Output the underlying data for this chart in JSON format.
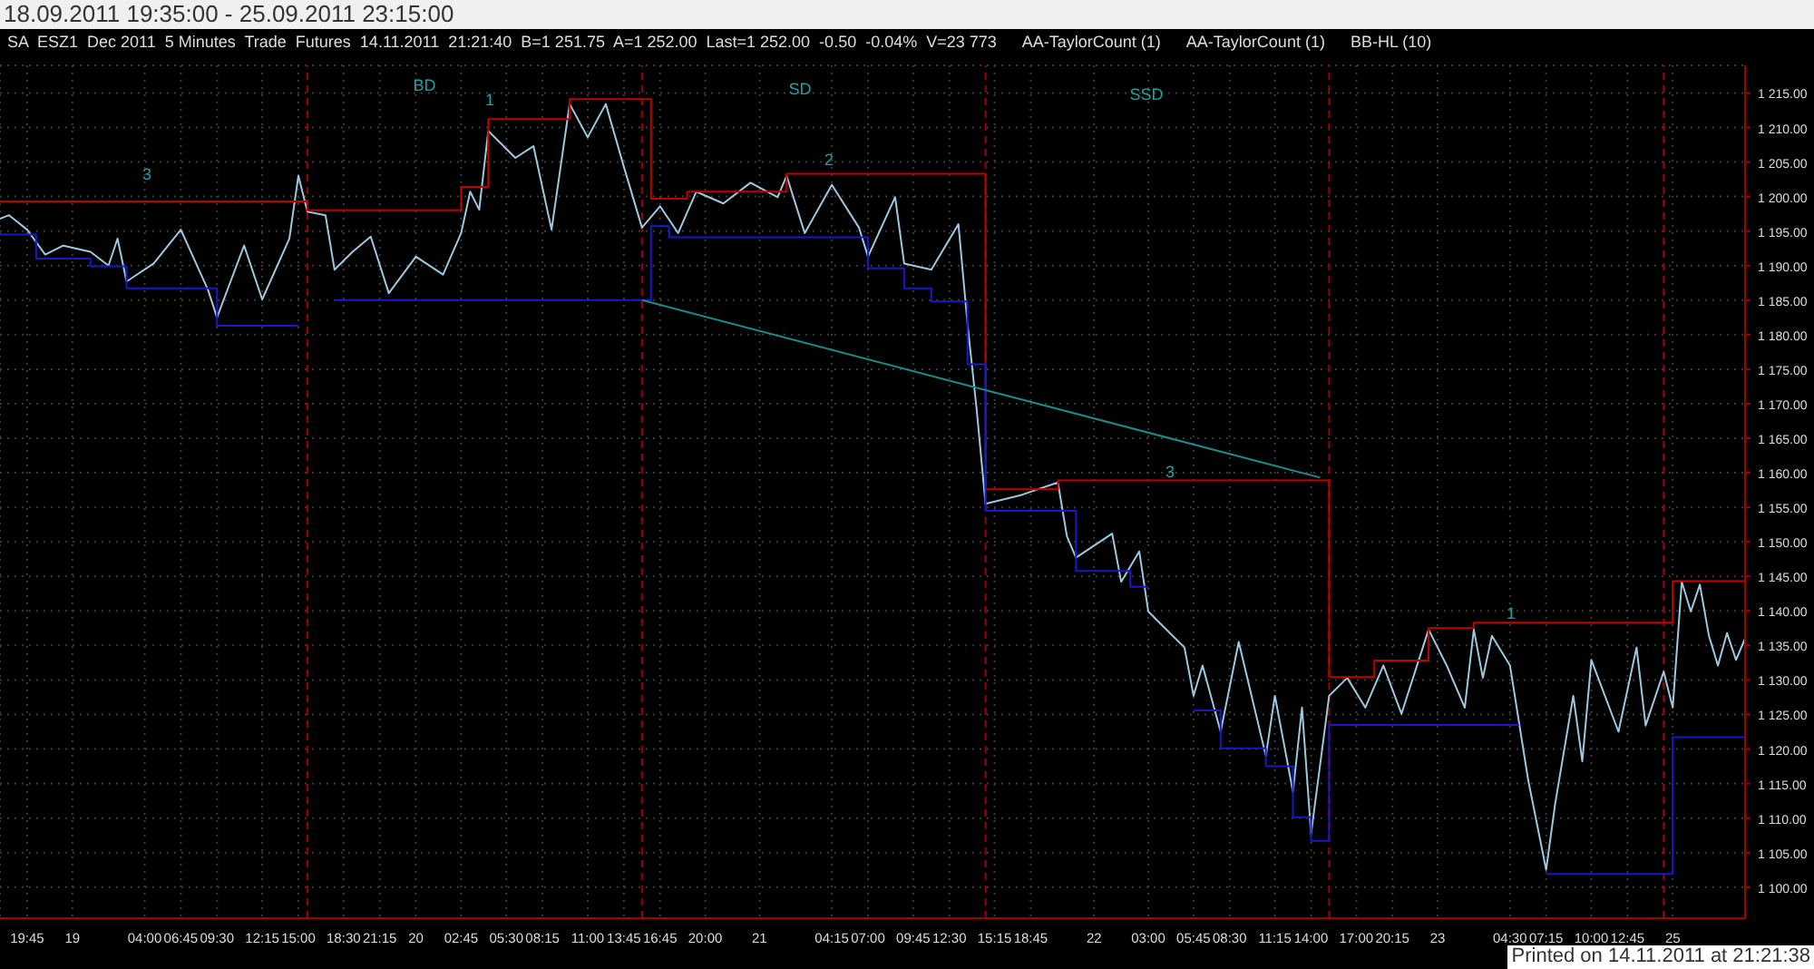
{
  "chart_data": {
    "type": "line",
    "title": "18.09.2011 19:35:00 - 25.09.2011 23:15:00",
    "subtitle": "SA  ESZ1  Dec 2011  5 Minutes  Trade  Futures  14.11.2011  21:21:40  B=1 251.75  A=1 252.00  Last=1 252.00  -0.50  -0.04%  V=23 773",
    "categories": [
      null,
      null,
      null,
      "19:45",
      null,
      null,
      null,
      null,
      "19",
      null,
      null,
      null,
      null,
      null,
      null,
      null,
      "04:00",
      null,
      null,
      null,
      "06:45",
      null,
      null,
      null,
      "09:30",
      null,
      null,
      null,
      null,
      "12:15",
      null,
      null,
      null,
      "15:00",
      null,
      null,
      null,
      null,
      "18:30",
      null,
      null,
      null,
      "21:15",
      null,
      null,
      null,
      "20",
      null,
      null,
      null,
      null,
      "02:45",
      null,
      null,
      null,
      null,
      "05:30",
      null,
      null,
      null,
      "08:15",
      null,
      null,
      null,
      null,
      "11:00",
      null,
      null,
      null,
      "13:45",
      null,
      null,
      null,
      "16:45",
      null,
      null,
      null,
      null,
      "20:00",
      null,
      null,
      null,
      null,
      null,
      "21",
      null,
      null,
      null,
      null,
      null,
      null,
      null,
      "04:15",
      null,
      null,
      null,
      "07:00",
      null,
      null,
      null,
      null,
      "09:45",
      null,
      null,
      null,
      "12:30",
      null,
      null,
      null,
      null,
      "15:15",
      null,
      null,
      null,
      "18:45",
      null,
      null,
      null,
      null,
      null,
      null,
      "22",
      null,
      null,
      null,
      null,
      null,
      "03:00",
      null,
      null,
      null,
      null,
      "05:45",
      null,
      null,
      null,
      "08:30",
      null,
      null,
      null,
      null,
      "11:15",
      null,
      null,
      null,
      "14:00",
      null,
      null,
      null,
      null,
      "17:00",
      null,
      null,
      null,
      "20:15",
      null,
      null,
      null,
      null,
      "23",
      null,
      null,
      null,
      null,
      null,
      null,
      null,
      "04:30",
      null,
      null,
      null,
      "07:15",
      null,
      null,
      null,
      null,
      "10:00",
      null,
      null,
      null,
      "12:45",
      null,
      null,
      null,
      null,
      "25",
      null,
      null,
      null,
      null,
      null,
      null,
      null,
      null
    ],
    "series": [
      {
        "color": "#9cc8e0",
        "values": [
          1196.8,
          1197.3,
          null,
          1195.2,
          null,
          1191.6,
          null,
          1192.9,
          null,
          null,
          1192,
          null,
          1190,
          1193.9,
          1187.7,
          null,
          null,
          1190.3,
          null,
          null,
          1195.2,
          null,
          null,
          1186.5,
          1182.5,
          null,
          null,
          1192.9,
          null,
          1185.1,
          null,
          null,
          1193.9,
          1203.0,
          1197.8,
          null,
          1197.3,
          1189.4,
          null,
          1192,
          null,
          1194.2,
          null,
          1186.0,
          null,
          null,
          1191.3,
          null,
          null,
          1188.7,
          null,
          1194.7,
          1200.7,
          1198.1,
          1209.5,
          null,
          null,
          1205.6,
          null,
          1207.3,
          null,
          1195.2,
          null,
          1213.4,
          null,
          1208.6,
          null,
          1213.4,
          null,
          1204.3,
          null,
          1195.5,
          null,
          1198.6,
          null,
          1194.7,
          null,
          1200.7,
          null,
          null,
          1199.0,
          null,
          null,
          1202.0,
          null,
          null,
          1199.9,
          1203.0,
          null,
          1194.7,
          null,
          null,
          1201.7,
          null,
          null,
          1195.5,
          1191.3,
          null,
          null,
          1199.9,
          1190.3,
          null,
          null,
          1189.4,
          null,
          null,
          1196.0,
          1181.6,
          1169.4,
          1155.5,
          null,
          null,
          null,
          1156.8,
          null,
          null,
          null,
          1158.6,
          1150.8,
          1147.7,
          null,
          null,
          null,
          1151.2,
          1144.2,
          null,
          1148.6,
          1139.9,
          null,
          null,
          null,
          1134.7,
          1127.7,
          1132.1,
          null,
          1122.5,
          null,
          1135.5,
          null,
          null,
          1119.0,
          1127.7,
          null,
          1113.8,
          1126.0,
          1107.7,
          null,
          1127.7,
          null,
          1130.3,
          null,
          1126.0,
          null,
          1132.1,
          null,
          1125.1,
          null,
          null,
          1137.3,
          null,
          1132.1,
          null,
          1126.0,
          1137.3,
          1130.3,
          1136.4,
          null,
          1132.1,
          null,
          1115.6,
          null,
          1102.5,
          1112.1,
          null,
          1127.7,
          1118.2,
          1132.9,
          null,
          null,
          1122.5,
          null,
          1134.7,
          1123.4,
          null,
          1131.2,
          1126.0,
          1144.2,
          1139.9,
          1143.8,
          1136.4,
          1132.1,
          1136.8,
          1132.9,
          1136.0
        ]
      },
      {
        "type": "step",
        "color": "#c00000",
        "values": [
          1199.3,
          1199.3,
          1199.3,
          1199.3,
          1199.3,
          1199.3,
          1199.3,
          1199.3,
          1199.3,
          1199.3,
          1199.3,
          1199.3,
          1199.3,
          1199.3,
          1199.3,
          1199.3,
          1199.3,
          1199.3,
          1199.3,
          1199.3,
          1199.3,
          1199.3,
          1199.3,
          1199.3,
          1199.3,
          1199.3,
          1199.3,
          1199.3,
          1199.3,
          1199.3,
          1199.3,
          1199.3,
          1199.3,
          1199.3,
          1198.0,
          1198.0,
          1198.0,
          1198.0,
          1198.0,
          1198.0,
          1198.0,
          1198.0,
          1198.0,
          1198.0,
          1198.0,
          1198.0,
          1198.0,
          1198.0,
          1198.0,
          1198.0,
          1198.0,
          1201.4,
          1201.4,
          1201.4,
          1211.2,
          1211.2,
          1211.2,
          1211.2,
          1211.2,
          1211.2,
          1211.2,
          1211.2,
          1211.2,
          1214.1,
          1214.1,
          1214.1,
          1214.1,
          1214.1,
          1214.1,
          1214.1,
          1214.1,
          1214.1,
          1199.7,
          1199.7,
          1199.7,
          1199.7,
          1200.7,
          1200.7,
          1200.7,
          1200.7,
          1200.7,
          1200.7,
          1200.7,
          1200.7,
          1200.7,
          1200.7,
          1200.7,
          1203.3,
          1203.3,
          1203.3,
          1203.3,
          1203.3,
          1203.3,
          1203.3,
          1203.3,
          1203.3,
          1203.3,
          1203.3,
          1203.3,
          1203.3,
          1203.3,
          1203.3,
          1203.3,
          1203.3,
          1203.3,
          1203.3,
          1203.3,
          1203.3,
          1203.3,
          1157.6,
          1157.6,
          1157.6,
          1157.6,
          1157.6,
          1157.6,
          1157.6,
          1157.6,
          1158.9,
          1158.9,
          1158.9,
          1158.9,
          1158.9,
          1158.9,
          1158.9,
          1158.9,
          1158.9,
          1158.9,
          1158.9,
          1158.9,
          1158.9,
          1158.9,
          1158.9,
          1158.9,
          1158.9,
          1158.9,
          1158.9,
          1158.9,
          1158.9,
          1158.9,
          1158.9,
          1158.9,
          1158.9,
          1158.9,
          1158.9,
          1158.9,
          1158.9,
          1158.9,
          1130.4,
          1130.4,
          1130.4,
          1130.4,
          1130.4,
          1132.8,
          1132.8,
          1132.8,
          1132.8,
          1132.8,
          1132.8,
          1137.5,
          1137.5,
          1137.5,
          1137.5,
          1137.5,
          1138.3,
          1138.3,
          1138.3,
          1138.3,
          1138.3,
          1138.3,
          1138.3,
          1138.3,
          1138.3,
          1138.3,
          1138.3,
          1138.3,
          1138.3,
          1138.3,
          1138.3,
          1138.3,
          1138.3,
          1138.3,
          1138.3,
          1138.3,
          1138.3,
          1138.3,
          1144.3,
          1144.3,
          1144.3,
          1144.3,
          1144.3,
          1144.3,
          1144.3,
          1144.3,
          1144.3
        ]
      },
      {
        "type": "step",
        "color": "#1818c8",
        "values": [
          1194.5,
          1194.5,
          1194.5,
          1194.5,
          1191.0,
          1191.0,
          1191.0,
          1191.0,
          1191.0,
          1191.0,
          1189.9,
          1189.9,
          1189.9,
          1189.9,
          1186.7,
          1186.7,
          1186.7,
          1186.7,
          1186.7,
          1186.7,
          1186.7,
          1186.7,
          1186.7,
          1186.7,
          1181.3,
          1181.3,
          1181.3,
          1181.3,
          1181.3,
          1181.3,
          1181.3,
          1181.3,
          1181.3,
          1181.3,
          null,
          null,
          null,
          1185.0,
          1185.0,
          1185.0,
          1185.0,
          1185.0,
          1185.0,
          1185.0,
          1185.0,
          1185.0,
          1185.0,
          1185.0,
          1185.0,
          1185.0,
          1185.0,
          1185.0,
          1185.0,
          1185.0,
          1185.0,
          1185.0,
          1185.0,
          1185.0,
          1185.0,
          1185.0,
          1185.0,
          1185.0,
          1185.0,
          1185.0,
          1185.0,
          1185.0,
          1185.0,
          1185.0,
          1185.0,
          1185.0,
          1185.0,
          1185.0,
          1195.7,
          1195.7,
          1194.1,
          1194.1,
          1194.1,
          1194.1,
          1194.1,
          1194.1,
          1194.1,
          1194.1,
          1194.1,
          1194.1,
          1194.1,
          1194.1,
          1194.1,
          1194.1,
          1194.1,
          1194.1,
          1194.1,
          1194.1,
          1194.1,
          1194.1,
          1194.1,
          1194.1,
          1189.6,
          1189.6,
          1189.6,
          1189.6,
          1186.7,
          1186.7,
          1186.7,
          1184.8,
          1184.8,
          1184.8,
          1184.8,
          1175.7,
          1175.7,
          1154.5,
          1154.5,
          1154.5,
          1154.5,
          1154.5,
          1154.5,
          1154.5,
          1154.5,
          1154.5,
          1154.5,
          1145.8,
          1145.8,
          1145.8,
          1145.8,
          1145.8,
          1145.8,
          1143.5,
          1143.5,
          1143.5,
          null,
          null,
          null,
          null,
          1125.6,
          1125.6,
          1125.6,
          1120.1,
          1120.1,
          1120.1,
          1120.1,
          1120.1,
          1117.5,
          1117.5,
          1117.5,
          1110.1,
          1110.1,
          1106.7,
          1106.7,
          1123.5,
          1123.5,
          1123.5,
          1123.5,
          1123.5,
          1123.5,
          1123.5,
          1123.5,
          1123.5,
          1123.5,
          1123.5,
          1123.5,
          1123.5,
          1123.5,
          1123.5,
          1123.5,
          1123.5,
          1123.5,
          1123.5,
          1123.5,
          1123.5,
          1123.5,
          null,
          null,
          1101.9,
          1101.9,
          1101.9,
          1101.9,
          1101.9,
          1101.9,
          1101.9,
          1101.9,
          1101.9,
          1101.9,
          1101.9,
          1101.9,
          1101.9,
          1101.9,
          1121.7,
          1121.7,
          1121.7,
          1121.7,
          1121.7,
          1121.7,
          1121.7,
          1121.7,
          1121.7
        ]
      },
      {
        "color": "#1a8c8c",
        "values": [
          null,
          null,
          null,
          null,
          null,
          null,
          null,
          null,
          null,
          null,
          null,
          null,
          null,
          null,
          null,
          null,
          null,
          null,
          null,
          null,
          null,
          null,
          null,
          null,
          null,
          null,
          null,
          null,
          null,
          null,
          null,
          null,
          null,
          null,
          null,
          null,
          null,
          null,
          null,
          null,
          null,
          null,
          null,
          null,
          null,
          null,
          null,
          null,
          null,
          null,
          null,
          null,
          null,
          null,
          null,
          null,
          null,
          null,
          null,
          null,
          null,
          null,
          null,
          null,
          null,
          null,
          null,
          null,
          null,
          null,
          null,
          1185.0,
          null,
          null,
          null,
          null,
          null,
          null,
          null,
          null,
          null,
          null,
          null,
          null,
          null,
          null,
          null,
          null,
          null,
          null,
          null,
          null,
          null,
          null,
          null,
          null,
          null,
          null,
          null,
          null,
          null,
          null,
          null,
          null,
          null,
          null,
          null,
          null,
          null,
          null,
          null,
          null,
          null,
          null,
          null,
          null,
          null,
          null,
          null,
          null,
          null,
          null,
          null,
          null,
          null,
          null,
          null,
          null,
          null,
          null,
          null,
          null,
          null,
          null,
          null,
          null,
          null,
          null,
          null,
          null,
          null,
          null,
          null,
          null,
          null,
          null,
          1159.3,
          null,
          null,
          null,
          null,
          null,
          null,
          null,
          null,
          null,
          null,
          null,
          null,
          null,
          null,
          null,
          null,
          null,
          null,
          null,
          null,
          null,
          null,
          null,
          null,
          null,
          null,
          null,
          null,
          null,
          null,
          null,
          null,
          null,
          null,
          null,
          null,
          null,
          null,
          null,
          null,
          null,
          null,
          null,
          null,
          null,
          null,
          null
        ]
      }
    ],
    "ylim": [
      1095.5,
      1219
    ],
    "yticks": [
      {
        "value": 1100,
        "label": "1 100.00"
      },
      {
        "value": 1105,
        "label": "1 105.00"
      },
      {
        "value": 1110,
        "label": "1 110.00"
      },
      {
        "value": 1115,
        "label": "1 115.00"
      },
      {
        "value": 1120,
        "label": "1 120.00"
      },
      {
        "value": 1125,
        "label": "1 125.00"
      },
      {
        "value": 1130,
        "label": "1 130.00"
      },
      {
        "value": 1135,
        "label": "1 135.00"
      },
      {
        "value": 1140,
        "label": "1 140.00"
      },
      {
        "value": 1145,
        "label": "1 145.00"
      },
      {
        "value": 1150,
        "label": "1 150.00"
      },
      {
        "value": 1155,
        "label": "1 155.00"
      },
      {
        "value": 1160,
        "label": "1 160.00"
      },
      {
        "value": 1165,
        "label": "1 165.00"
      },
      {
        "value": 1170,
        "label": "1 170.00"
      },
      {
        "value": 1175,
        "label": "1 175.00"
      },
      {
        "value": 1180,
        "label": "1 180.00"
      },
      {
        "value": 1185,
        "label": "1 185.00"
      },
      {
        "value": 1190,
        "label": "1 190.00"
      },
      {
        "value": 1195,
        "label": "1 195.00"
      },
      {
        "value": 1200,
        "label": "1 200.00"
      },
      {
        "value": 1205,
        "label": "1 205.00"
      },
      {
        "value": 1210,
        "label": "1 210.00"
      },
      {
        "value": 1215,
        "label": "1 215.00"
      }
    ],
    "annotations": [
      "3",
      "BD",
      "1",
      "SD",
      "2",
      "SSD",
      "3",
      "1",
      "AA-TaylorCount (1)",
      "AA-TaylorCount (1)",
      "BB-HL (10)",
      "Printed on 14.11.2011 at 21:21:38"
    ],
    "grid": true,
    "legend": false,
    "marker": "none",
    "line_style": "solid"
  }
}
